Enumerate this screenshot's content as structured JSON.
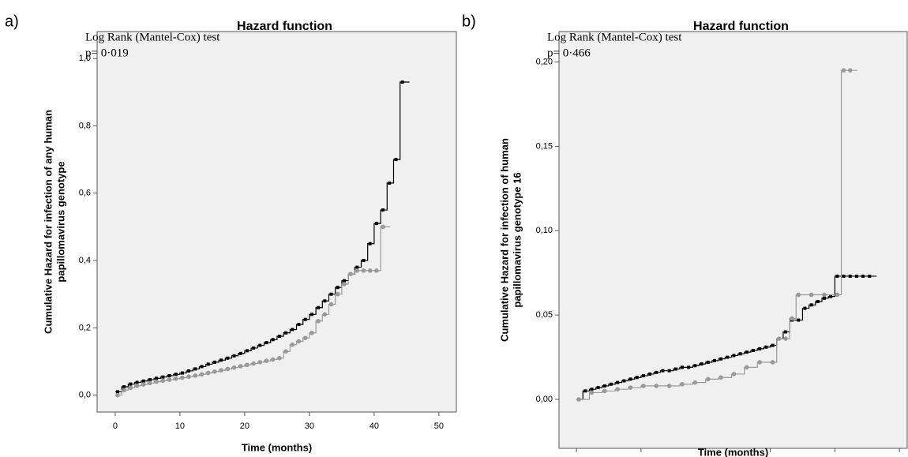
{
  "chart_data": [
    {
      "type": "step",
      "panel": "a)",
      "title": "Hazard function",
      "annotation": [
        "Log Rank (Mantel-Cox) test",
        "p= 0·019"
      ],
      "xlabel": "Time (months)",
      "ylabel": [
        "Cumulative Hazard for infection of any human",
        "papillomavirus genotype"
      ],
      "xlim": [
        -2.8,
        52.7
      ],
      "ylim": [
        -0.05,
        1.08
      ],
      "xticks": [
        0,
        10,
        20,
        30,
        40,
        50
      ],
      "yticks": [
        {
          "value": 0,
          "label": "0,0"
        },
        {
          "value": 0.2,
          "label": "0,2"
        },
        {
          "value": 0.4,
          "label": "0,4"
        },
        {
          "value": 0.6,
          "label": "0,6"
        },
        {
          "value": 0.8,
          "label": "0,8"
        },
        {
          "value": 1.0,
          "label": "1,0"
        }
      ],
      "grid": false,
      "series": [
        {
          "color": "#000000",
          "marker": "square",
          "x": [
            0,
            1,
            2,
            3,
            4,
            5,
            6,
            7,
            8,
            9,
            10,
            11,
            12,
            13,
            14,
            15,
            16,
            17,
            18,
            19,
            20,
            21,
            22,
            23,
            24,
            25,
            26,
            27,
            28,
            29,
            30,
            31,
            32,
            33,
            34,
            35,
            36,
            37,
            38,
            39,
            40,
            41,
            42,
            43,
            44
          ],
          "values": [
            0.01,
            0.025,
            0.033,
            0.038,
            0.042,
            0.046,
            0.05,
            0.054,
            0.058,
            0.062,
            0.066,
            0.072,
            0.078,
            0.085,
            0.092,
            0.098,
            0.104,
            0.11,
            0.117,
            0.124,
            0.132,
            0.14,
            0.148,
            0.156,
            0.165,
            0.175,
            0.185,
            0.195,
            0.21,
            0.225,
            0.24,
            0.26,
            0.28,
            0.3,
            0.32,
            0.34,
            0.36,
            0.38,
            0.4,
            0.45,
            0.51,
            0.55,
            0.63,
            0.7,
            0.93
          ]
        },
        {
          "color": "#999999",
          "marker": "circle",
          "x": [
            0,
            1,
            2,
            3,
            4,
            5,
            6,
            7,
            8,
            9,
            10,
            11,
            12,
            13,
            14,
            15,
            16,
            17,
            18,
            19,
            20,
            21,
            22,
            23,
            24,
            25,
            26,
            27,
            28,
            29,
            30,
            31,
            32,
            33,
            34,
            35,
            36,
            37,
            38,
            39,
            40,
            41
          ],
          "values": [
            0,
            0.015,
            0.022,
            0.028,
            0.032,
            0.036,
            0.04,
            0.043,
            0.046,
            0.049,
            0.052,
            0.055,
            0.058,
            0.062,
            0.066,
            0.07,
            0.074,
            0.078,
            0.082,
            0.086,
            0.09,
            0.094,
            0.098,
            0.102,
            0.106,
            0.11,
            0.13,
            0.15,
            0.16,
            0.17,
            0.185,
            0.22,
            0.24,
            0.27,
            0.3,
            0.33,
            0.36,
            0.37,
            0.37,
            0.37,
            0.37,
            0.5
          ]
        }
      ]
    },
    {
      "type": "step",
      "panel": "b)",
      "title": "Hazard function",
      "annotation": [
        "Log Rank (Mantel-Cox) test",
        "p= 0·466"
      ],
      "xlabel": "Time (months)",
      "ylabel": [
        "Cumulative Hazard for infection of human",
        "papillomavirus genotype 16"
      ],
      "xlim": [
        -2.7,
        51.2
      ],
      "ylim": [
        -0.029,
        0.218
      ],
      "xticks": [
        0,
        10,
        20,
        30,
        40,
        50
      ],
      "yticks": [
        {
          "value": 0,
          "label": "0,00"
        },
        {
          "value": 0.05,
          "label": "0,05"
        },
        {
          "value": 0.1,
          "label": "0,10"
        },
        {
          "value": 0.15,
          "label": "0,15"
        },
        {
          "value": 0.2,
          "label": "0,20"
        }
      ],
      "grid": false,
      "series": [
        {
          "color": "#000000",
          "marker": "square",
          "x": [
            0,
            1,
            2,
            3,
            4,
            5,
            6,
            7,
            8,
            9,
            10,
            11,
            12,
            13,
            14,
            15,
            16,
            17,
            18,
            19,
            20,
            21,
            22,
            23,
            24,
            25,
            26,
            27,
            28,
            29,
            30,
            31,
            32,
            33,
            34,
            35,
            36,
            37,
            38,
            39,
            40,
            41,
            42,
            43,
            44,
            45
          ],
          "values": [
            0,
            0.005,
            0.006,
            0.007,
            0.008,
            0.009,
            0.01,
            0.011,
            0.012,
            0.013,
            0.014,
            0.015,
            0.016,
            0.017,
            0.017,
            0.018,
            0.019,
            0.019,
            0.02,
            0.021,
            0.022,
            0.023,
            0.024,
            0.025,
            0.026,
            0.027,
            0.028,
            0.029,
            0.03,
            0.031,
            0.032,
            0.036,
            0.04,
            0.047,
            0.047,
            0.054,
            0.056,
            0.058,
            0.06,
            0.061,
            0.073,
            0.073,
            0.073,
            0.073,
            0.073,
            0.073
          ]
        },
        {
          "color": "#999999",
          "marker": "circle",
          "x": [
            0,
            2,
            4,
            6,
            8,
            10,
            12,
            14,
            16,
            18,
            20,
            22,
            24,
            26,
            28,
            30,
            31,
            32,
            33,
            34,
            36,
            38,
            40,
            41,
            42
          ],
          "values": [
            0,
            0.004,
            0.005,
            0.006,
            0.007,
            0.008,
            0.008,
            0.008,
            0.009,
            0.01,
            0.012,
            0.013,
            0.015,
            0.019,
            0.022,
            0.022,
            0.036,
            0.036,
            0.048,
            0.062,
            0.062,
            0.062,
            0.062,
            0.195,
            0.195
          ]
        }
      ]
    }
  ]
}
